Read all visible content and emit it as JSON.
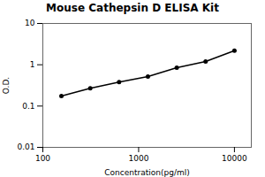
{
  "chart_data": {
    "type": "line",
    "title": "Mouse Cathepsin D ELISA Kit",
    "xlabel": "Concentration(pg/ml)",
    "ylabel": "O.D.",
    "x": [
      156.25,
      312.5,
      625,
      1250,
      2500,
      5000,
      10000
    ],
    "values": [
      0.175,
      0.27,
      0.38,
      0.52,
      0.85,
      1.2,
      2.2
    ],
    "color": "#000000",
    "marker": "circle",
    "log": true,
    "xlim": [
      100,
      15000
    ],
    "ylim": [
      0.01,
      10
    ],
    "xticks": [
      100,
      1000,
      10000
    ],
    "yticks": [
      0.01,
      0.1,
      1,
      10
    ],
    "grid": false
  }
}
